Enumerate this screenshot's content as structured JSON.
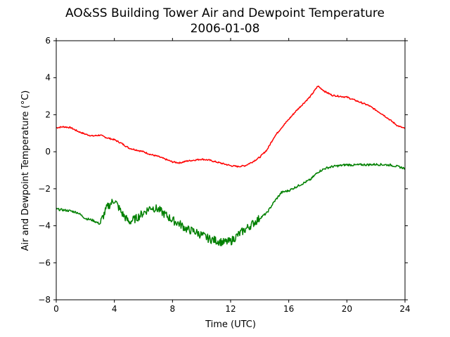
{
  "chart_data": {
    "type": "line",
    "title": "AO&SS Building Tower Air and Dewpoint Temperature",
    "subtitle": "2006-01-08",
    "xlabel": "Time (UTC)",
    "ylabel": "Air and Dewpoint Temperature (°C)",
    "xlim": [
      0,
      24
    ],
    "ylim": [
      -8,
      6
    ],
    "xticks": [
      0,
      4,
      8,
      12,
      16,
      20,
      24
    ],
    "yticks": [
      -8,
      -6,
      -4,
      -2,
      0,
      2,
      4,
      6
    ],
    "grid": false,
    "series": [
      {
        "color": "#ff0000",
        "x": [
          0,
          0.5,
          1,
          1.5,
          2,
          2.5,
          3,
          3.5,
          4,
          4.5,
          5,
          5.5,
          6,
          6.5,
          7,
          7.5,
          8,
          8.5,
          9,
          9.5,
          10,
          10.5,
          11,
          11.5,
          12,
          12.5,
          13,
          13.5,
          14,
          14.5,
          15,
          15.5,
          16,
          16.5,
          17,
          17.5,
          18,
          18.5,
          19,
          19.5,
          20,
          20.5,
          21,
          21.5,
          22,
          22.5,
          23,
          23.5,
          24
        ],
        "y": [
          1.3,
          1.35,
          1.3,
          1.1,
          0.95,
          0.85,
          0.9,
          0.75,
          0.65,
          0.45,
          0.2,
          0.1,
          0.0,
          -0.15,
          -0.25,
          -0.4,
          -0.55,
          -0.6,
          -0.5,
          -0.45,
          -0.4,
          -0.45,
          -0.55,
          -0.65,
          -0.75,
          -0.8,
          -0.75,
          -0.55,
          -0.3,
          0.1,
          0.8,
          1.3,
          1.75,
          2.2,
          2.6,
          3.0,
          3.55,
          3.25,
          3.05,
          3.0,
          2.95,
          2.8,
          2.65,
          2.5,
          2.25,
          2.0,
          1.7,
          1.4,
          1.25
        ]
      },
      {
        "color": "#008000",
        "x": [
          0,
          0.5,
          1,
          1.5,
          2,
          2.5,
          3,
          3.5,
          4,
          4.5,
          5,
          5.5,
          6,
          6.5,
          7,
          7.5,
          8,
          8.5,
          9,
          9.5,
          10,
          10.5,
          11,
          11.5,
          12,
          12.5,
          13,
          13.5,
          14,
          14.5,
          15,
          15.5,
          16,
          16.5,
          17,
          17.5,
          18,
          18.5,
          19,
          19.5,
          20,
          20.5,
          21,
          21.5,
          22,
          22.5,
          23,
          23.5,
          24
        ],
        "y": [
          -3.1,
          -3.15,
          -3.2,
          -3.3,
          -3.6,
          -3.7,
          -3.9,
          -3.0,
          -2.6,
          -3.3,
          -3.8,
          -3.6,
          -3.3,
          -3.0,
          -3.1,
          -3.4,
          -3.7,
          -3.9,
          -4.2,
          -4.3,
          -4.5,
          -4.7,
          -4.8,
          -4.9,
          -4.85,
          -4.5,
          -4.2,
          -3.9,
          -3.6,
          -3.3,
          -2.7,
          -2.2,
          -2.1,
          -1.9,
          -1.7,
          -1.5,
          -1.1,
          -0.9,
          -0.8,
          -0.75,
          -0.7,
          -0.72,
          -0.7,
          -0.7,
          -0.68,
          -0.7,
          -0.72,
          -0.8,
          -0.9
        ]
      }
    ]
  }
}
